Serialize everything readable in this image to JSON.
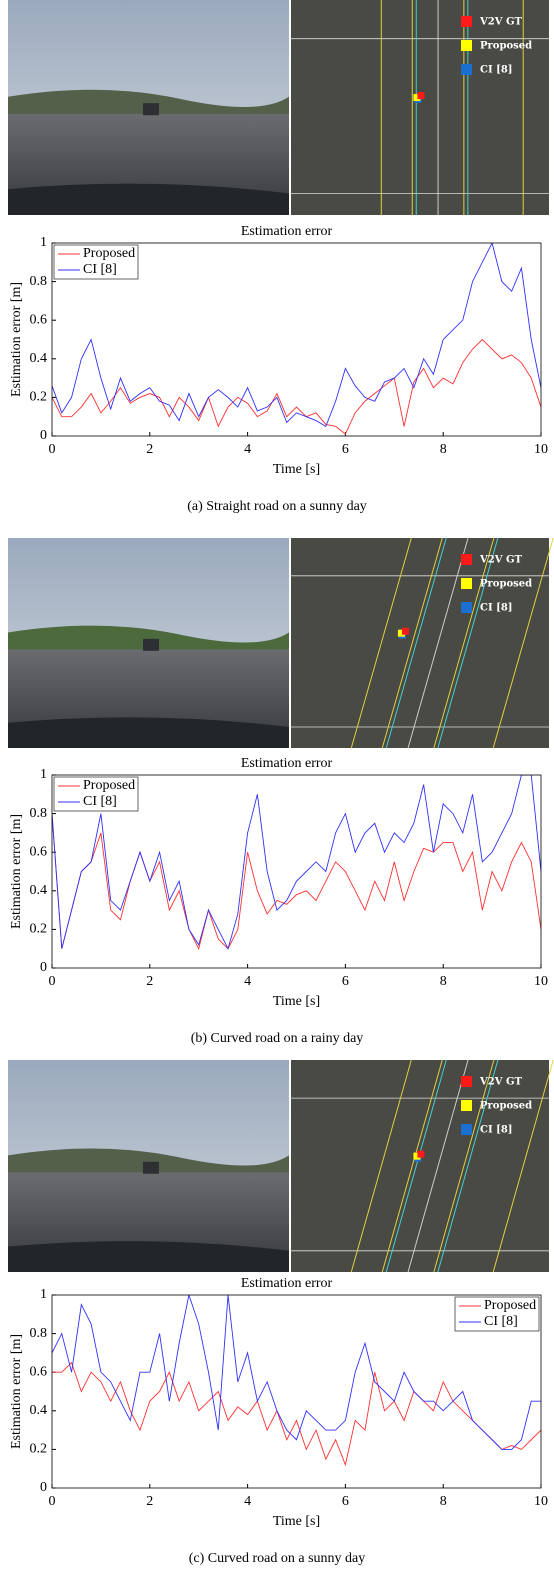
{
  "chart_data": [
    {
      "type": "line",
      "title": "Estimation error",
      "xlabel": "Time [s]",
      "ylabel": "Estimation error [m]",
      "legend": "upper left",
      "x": [
        0,
        0.2,
        0.4,
        0.6,
        0.8,
        1,
        1.2,
        1.4,
        1.6,
        1.8,
        2,
        2.2,
        2.4,
        2.6,
        2.8,
        3,
        3.2,
        3.4,
        3.6,
        3.8,
        4,
        4.2,
        4.4,
        4.6,
        4.8,
        5,
        5.2,
        5.4,
        5.6,
        5.8,
        6,
        6.2,
        6.4,
        6.6,
        6.8,
        7,
        7.2,
        7.4,
        7.6,
        7.8,
        8,
        8.2,
        8.4,
        8.6,
        8.8,
        9,
        9.2,
        9.4,
        9.6,
        9.8,
        10
      ],
      "series": [
        {
          "name": "Proposed",
          "color": "#ff3030",
          "values": [
            0.2,
            0.1,
            0.1,
            0.15,
            0.22,
            0.12,
            0.18,
            0.25,
            0.17,
            0.2,
            0.22,
            0.2,
            0.1,
            0.2,
            0.15,
            0.08,
            0.2,
            0.05,
            0.15,
            0.2,
            0.17,
            0.1,
            0.13,
            0.22,
            0.1,
            0.15,
            0.1,
            0.12,
            0.06,
            0.05,
            0.01,
            0.12,
            0.18,
            0.22,
            0.26,
            0.3,
            0.05,
            0.28,
            0.35,
            0.25,
            0.3,
            0.27,
            0.38,
            0.45,
            0.5,
            0.45,
            0.4,
            0.42,
            0.38,
            0.3,
            0.15
          ]
        },
        {
          "name": "CI [8]",
          "color": "#3030ff",
          "values": [
            0.26,
            0.12,
            0.2,
            0.4,
            0.5,
            0.3,
            0.14,
            0.3,
            0.18,
            0.22,
            0.25,
            0.18,
            0.16,
            0.08,
            0.22,
            0.1,
            0.2,
            0.24,
            0.2,
            0.15,
            0.25,
            0.13,
            0.15,
            0.2,
            0.07,
            0.12,
            0.1,
            0.08,
            0.05,
            0.18,
            0.35,
            0.26,
            0.2,
            0.18,
            0.28,
            0.3,
            0.35,
            0.25,
            0.4,
            0.32,
            0.5,
            0.55,
            0.6,
            0.8,
            0.9,
            1.0,
            0.8,
            0.75,
            0.87,
            0.5,
            0.25
          ]
        }
      ],
      "xlim": [
        0,
        10
      ],
      "xticks": [
        0,
        2,
        4,
        6,
        8,
        10
      ],
      "ylim": [
        0,
        1
      ],
      "yticks": [
        0,
        0.2,
        0.4,
        0.6,
        0.8,
        1
      ]
    },
    {
      "type": "line",
      "title": "Estimation error",
      "xlabel": "Time [s]",
      "ylabel": "Estimation error [m]",
      "legend": "upper left",
      "x": [
        0,
        0.2,
        0.4,
        0.6,
        0.8,
        1,
        1.2,
        1.4,
        1.6,
        1.8,
        2,
        2.2,
        2.4,
        2.6,
        2.8,
        3,
        3.2,
        3.4,
        3.6,
        3.8,
        4,
        4.2,
        4.4,
        4.6,
        4.8,
        5,
        5.2,
        5.4,
        5.6,
        5.8,
        6,
        6.2,
        6.4,
        6.6,
        6.8,
        7,
        7.2,
        7.4,
        7.6,
        7.8,
        8,
        8.2,
        8.4,
        8.6,
        8.8,
        9,
        9.2,
        9.4,
        9.6,
        9.8,
        10
      ],
      "series": [
        {
          "name": "Proposed",
          "color": "#ff3030",
          "values": [
            0.8,
            0.1,
            0.3,
            0.5,
            0.55,
            0.7,
            0.3,
            0.25,
            0.45,
            0.6,
            0.45,
            0.55,
            0.3,
            0.4,
            0.2,
            0.1,
            0.3,
            0.15,
            0.1,
            0.2,
            0.6,
            0.4,
            0.28,
            0.35,
            0.33,
            0.38,
            0.4,
            0.35,
            0.45,
            0.55,
            0.5,
            0.4,
            0.3,
            0.45,
            0.35,
            0.55,
            0.35,
            0.5,
            0.62,
            0.6,
            0.65,
            0.65,
            0.5,
            0.6,
            0.3,
            0.5,
            0.4,
            0.55,
            0.65,
            0.55,
            0.2
          ]
        },
        {
          "name": "CI [8]",
          "color": "#3030ff",
          "values": [
            0.8,
            0.1,
            0.3,
            0.5,
            0.55,
            0.8,
            0.35,
            0.3,
            0.45,
            0.6,
            0.45,
            0.6,
            0.35,
            0.45,
            0.2,
            0.12,
            0.3,
            0.2,
            0.1,
            0.28,
            0.7,
            0.9,
            0.5,
            0.3,
            0.35,
            0.45,
            0.5,
            0.55,
            0.5,
            0.7,
            0.8,
            0.6,
            0.7,
            0.75,
            0.6,
            0.7,
            0.65,
            0.75,
            0.95,
            0.6,
            0.85,
            0.8,
            0.7,
            0.9,
            0.55,
            0.6,
            0.7,
            0.8,
            1.0,
            1.0,
            0.5
          ]
        }
      ],
      "xlim": [
        0,
        10
      ],
      "xticks": [
        0,
        2,
        4,
        6,
        8,
        10
      ],
      "ylim": [
        0,
        1
      ],
      "yticks": [
        0,
        0.2,
        0.4,
        0.6,
        0.8,
        1
      ]
    },
    {
      "type": "line",
      "title": "Estimation error",
      "xlabel": "Time [s]",
      "ylabel": "Estimation error [m]",
      "legend": "upper right",
      "x": [
        0,
        0.2,
        0.4,
        0.6,
        0.8,
        1,
        1.2,
        1.4,
        1.6,
        1.8,
        2,
        2.2,
        2.4,
        2.6,
        2.8,
        3,
        3.2,
        3.4,
        3.6,
        3.8,
        4,
        4.2,
        4.4,
        4.6,
        4.8,
        5,
        5.2,
        5.4,
        5.6,
        5.8,
        6,
        6.2,
        6.4,
        6.6,
        6.8,
        7,
        7.2,
        7.4,
        7.6,
        7.8,
        8,
        8.2,
        8.4,
        8.6,
        8.8,
        9,
        9.2,
        9.4,
        9.6,
        9.8,
        10
      ],
      "series": [
        {
          "name": "Proposed",
          "color": "#ff3030",
          "values": [
            0.6,
            0.6,
            0.65,
            0.5,
            0.6,
            0.55,
            0.45,
            0.55,
            0.4,
            0.3,
            0.45,
            0.5,
            0.6,
            0.45,
            0.55,
            0.4,
            0.45,
            0.5,
            0.35,
            0.42,
            0.38,
            0.45,
            0.3,
            0.4,
            0.25,
            0.35,
            0.2,
            0.3,
            0.15,
            0.25,
            0.12,
            0.35,
            0.3,
            0.6,
            0.4,
            0.45,
            0.35,
            0.5,
            0.45,
            0.4,
            0.55,
            0.45,
            0.4,
            0.35,
            0.3,
            0.25,
            0.2,
            0.22,
            0.2,
            0.25,
            0.3
          ]
        },
        {
          "name": "CI [8]",
          "color": "#3030ff",
          "values": [
            0.7,
            0.8,
            0.6,
            0.95,
            0.85,
            0.6,
            0.55,
            0.45,
            0.35,
            0.6,
            0.6,
            0.8,
            0.45,
            0.75,
            1.0,
            0.85,
            0.6,
            0.3,
            1.0,
            0.55,
            0.7,
            0.45,
            0.55,
            0.4,
            0.3,
            0.25,
            0.4,
            0.35,
            0.3,
            0.3,
            0.35,
            0.6,
            0.75,
            0.55,
            0.5,
            0.45,
            0.6,
            0.5,
            0.45,
            0.45,
            0.4,
            0.45,
            0.5,
            0.35,
            0.3,
            0.25,
            0.2,
            0.2,
            0.25,
            0.45,
            0.45
          ]
        }
      ],
      "xlim": [
        0,
        10
      ],
      "xticks": [
        0,
        2,
        4,
        6,
        8,
        10
      ],
      "ylim": [
        0,
        1
      ],
      "yticks": [
        0,
        0.2,
        0.4,
        0.6,
        0.8,
        1
      ]
    }
  ],
  "panels": [
    {
      "caption": "(a) Straight road on a sunny day",
      "map_legend": [
        {
          "label": "V2V GT",
          "color": "#ff1a1a"
        },
        {
          "label": "Proposed",
          "color": "#ffff00"
        },
        {
          "label": "CI [8]",
          "color": "#1a6fd0"
        }
      ]
    },
    {
      "caption": "(b) Curved road on a rainy day",
      "map_legend": [
        {
          "label": "V2V GT",
          "color": "#ff1a1a"
        },
        {
          "label": "Proposed",
          "color": "#ffff00"
        },
        {
          "label": "CI [8]",
          "color": "#1a6fd0"
        }
      ]
    },
    {
      "caption": "(c) Curved road on a sunny day",
      "map_legend": [
        {
          "label": "V2V GT",
          "color": "#ff1a1a"
        },
        {
          "label": "Proposed",
          "color": "#ffff00"
        },
        {
          "label": "CI [8]",
          "color": "#1a6fd0"
        }
      ]
    }
  ]
}
